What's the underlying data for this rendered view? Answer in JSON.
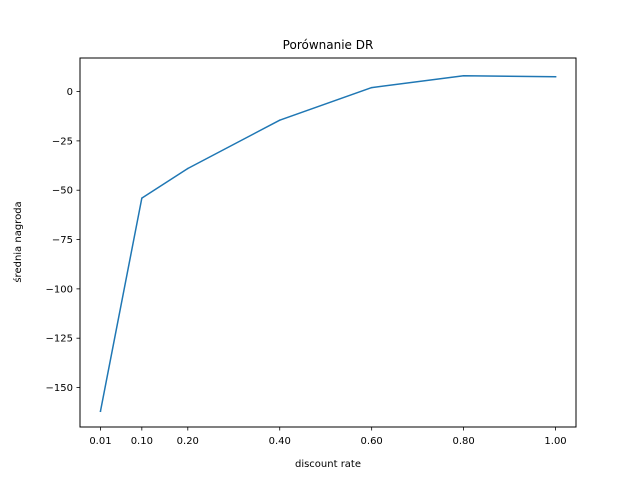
{
  "chart_data": {
    "type": "line",
    "title": "Porównanie DR",
    "xlabel": "discount rate",
    "ylabel": "średnia nagroda",
    "x_tick_labels": [
      "0.01",
      "0.10",
      "0.20",
      "0.40",
      "0.60",
      "0.80",
      "1.00"
    ],
    "y_ticks": [
      0,
      -25,
      -50,
      -75,
      -100,
      -125,
      -150
    ],
    "y_tick_labels": [
      "0",
      "−25",
      "−50",
      "−75",
      "−100",
      "−125",
      "−150"
    ],
    "ylim": [
      -170,
      17
    ],
    "grid": false,
    "series": [
      {
        "name": "DR",
        "color": "#1f77b4",
        "x": [
          0.01,
          0.1,
          0.2,
          0.4,
          0.6,
          0.8,
          1.0
        ],
        "values": [
          -162,
          -54,
          -39,
          -14.5,
          2,
          8,
          7.5
        ]
      }
    ]
  }
}
